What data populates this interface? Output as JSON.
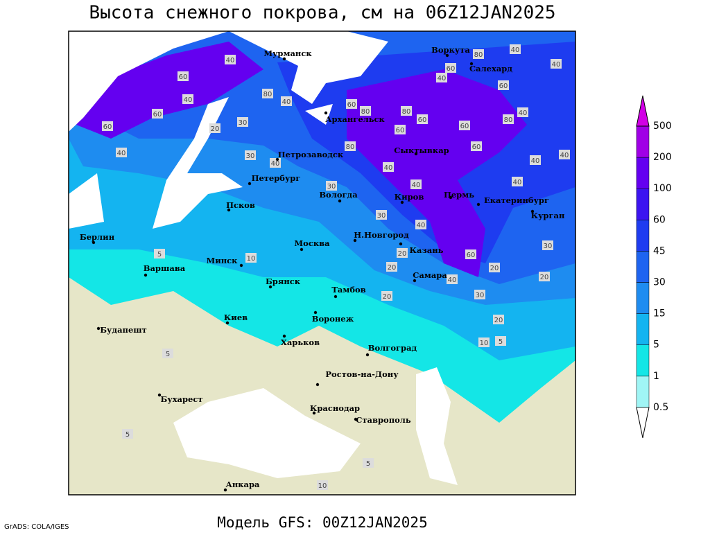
{
  "title": "Высота снежного покрова, см на 06Z12JAN2025",
  "footer": "Модель GFS: 00Z12JAN2025",
  "credit": "GrADS: COLA/IGES",
  "cities": [
    "Мурманск",
    "Воркута",
    "Салехард",
    "Архангельск",
    "Сыктывкар",
    "Петрозаводск",
    "Петербург",
    "Вологда",
    "Киров",
    "Пермь",
    "Екатеринбург",
    "Курган",
    "Псков",
    "Берлин",
    "Н.Новгород",
    "Казань",
    "Москва",
    "Минск",
    "Варшава",
    "Самара",
    "Брянск",
    "Тамбов",
    "Киев",
    "Воронеж",
    "Будапешт",
    "Харьков",
    "Волгоград",
    "Ростов-на-Дону",
    "Бухарест",
    "Краснодар",
    "Ставрополь",
    "Анкара"
  ],
  "contour_labels": [
    60,
    40,
    60,
    40,
    60,
    40,
    80,
    40,
    20,
    30,
    30,
    40,
    30,
    60,
    80,
    60,
    80,
    60,
    80,
    40,
    40,
    60,
    40,
    80,
    40,
    40,
    60,
    80,
    60,
    60,
    40,
    40,
    40,
    40,
    40,
    60,
    20,
    30,
    20,
    30,
    20,
    10,
    5,
    40,
    20,
    20,
    10,
    5,
    5,
    5,
    5,
    10,
    20,
    30
  ],
  "legend": {
    "levels": [
      0.5,
      1,
      5,
      15,
      30,
      45,
      60,
      100,
      200,
      500
    ],
    "colors": [
      "#ffffff",
      "#a0f5f5",
      "#14e6e6",
      "#14b4f0",
      "#1e8cf0",
      "#1e64f0",
      "#1e3cf0",
      "#3c14f0",
      "#6400f0",
      "#a000e6",
      "#d200e6"
    ]
  }
}
